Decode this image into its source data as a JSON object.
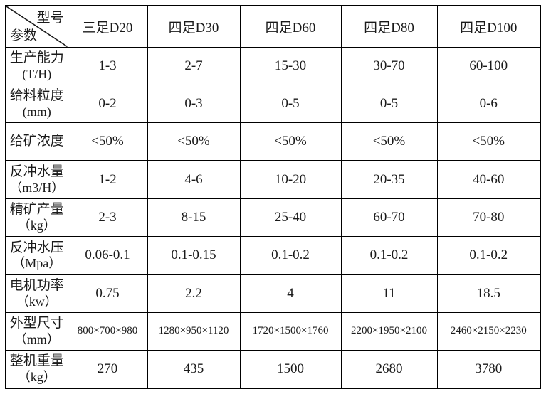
{
  "colors": {
    "background": "#ffffff",
    "border": "#000000",
    "text": "#1a1a1a"
  },
  "table": {
    "corner": {
      "top_right": "型号",
      "bottom_left": "参数"
    },
    "columns": [
      "三足D20",
      "四足D30",
      "四足D60",
      "四足D80",
      "四足D100"
    ],
    "rows": [
      {
        "label": "生产能力",
        "unit": "(T/H)",
        "values": [
          "1-3",
          "2-7",
          "15-30",
          "30-70",
          "60-100"
        ]
      },
      {
        "label": "给料粒度",
        "unit": "(mm)",
        "values": [
          "0-2",
          "0-3",
          "0-5",
          "0-5",
          "0-6"
        ]
      },
      {
        "label": "给矿浓度",
        "unit": "",
        "values": [
          "<50%",
          "<50%",
          "<50%",
          "<50%",
          "<50%"
        ]
      },
      {
        "label": "反冲水量",
        "unit": "（m3/H）",
        "values": [
          "1-2",
          "4-6",
          "10-20",
          "20-35",
          "40-60"
        ]
      },
      {
        "label": "精矿产量",
        "unit": "（kg）",
        "values": [
          "2-3",
          "8-15",
          "25-40",
          "60-70",
          "70-80"
        ]
      },
      {
        "label": "反冲水压",
        "unit": "（Mpa）",
        "values": [
          "0.06-0.1",
          "0.1-0.15",
          "0.1-0.2",
          "0.1-0.2",
          "0.1-0.2"
        ]
      },
      {
        "label": "电机功率",
        "unit": "（kw）",
        "values": [
          "0.75",
          "2.2",
          "4",
          "11",
          "18.5"
        ]
      },
      {
        "label": "外型尺寸",
        "unit": "（mm）",
        "values": [
          "800×700×980",
          "1280×950×1120",
          "1720×1500×1760",
          "2200×1950×2100",
          "2460×2150×2230"
        ]
      },
      {
        "label": "整机重量",
        "unit": "（kg）",
        "values": [
          "270",
          "435",
          "1500",
          "2680",
          "3780"
        ]
      }
    ]
  }
}
